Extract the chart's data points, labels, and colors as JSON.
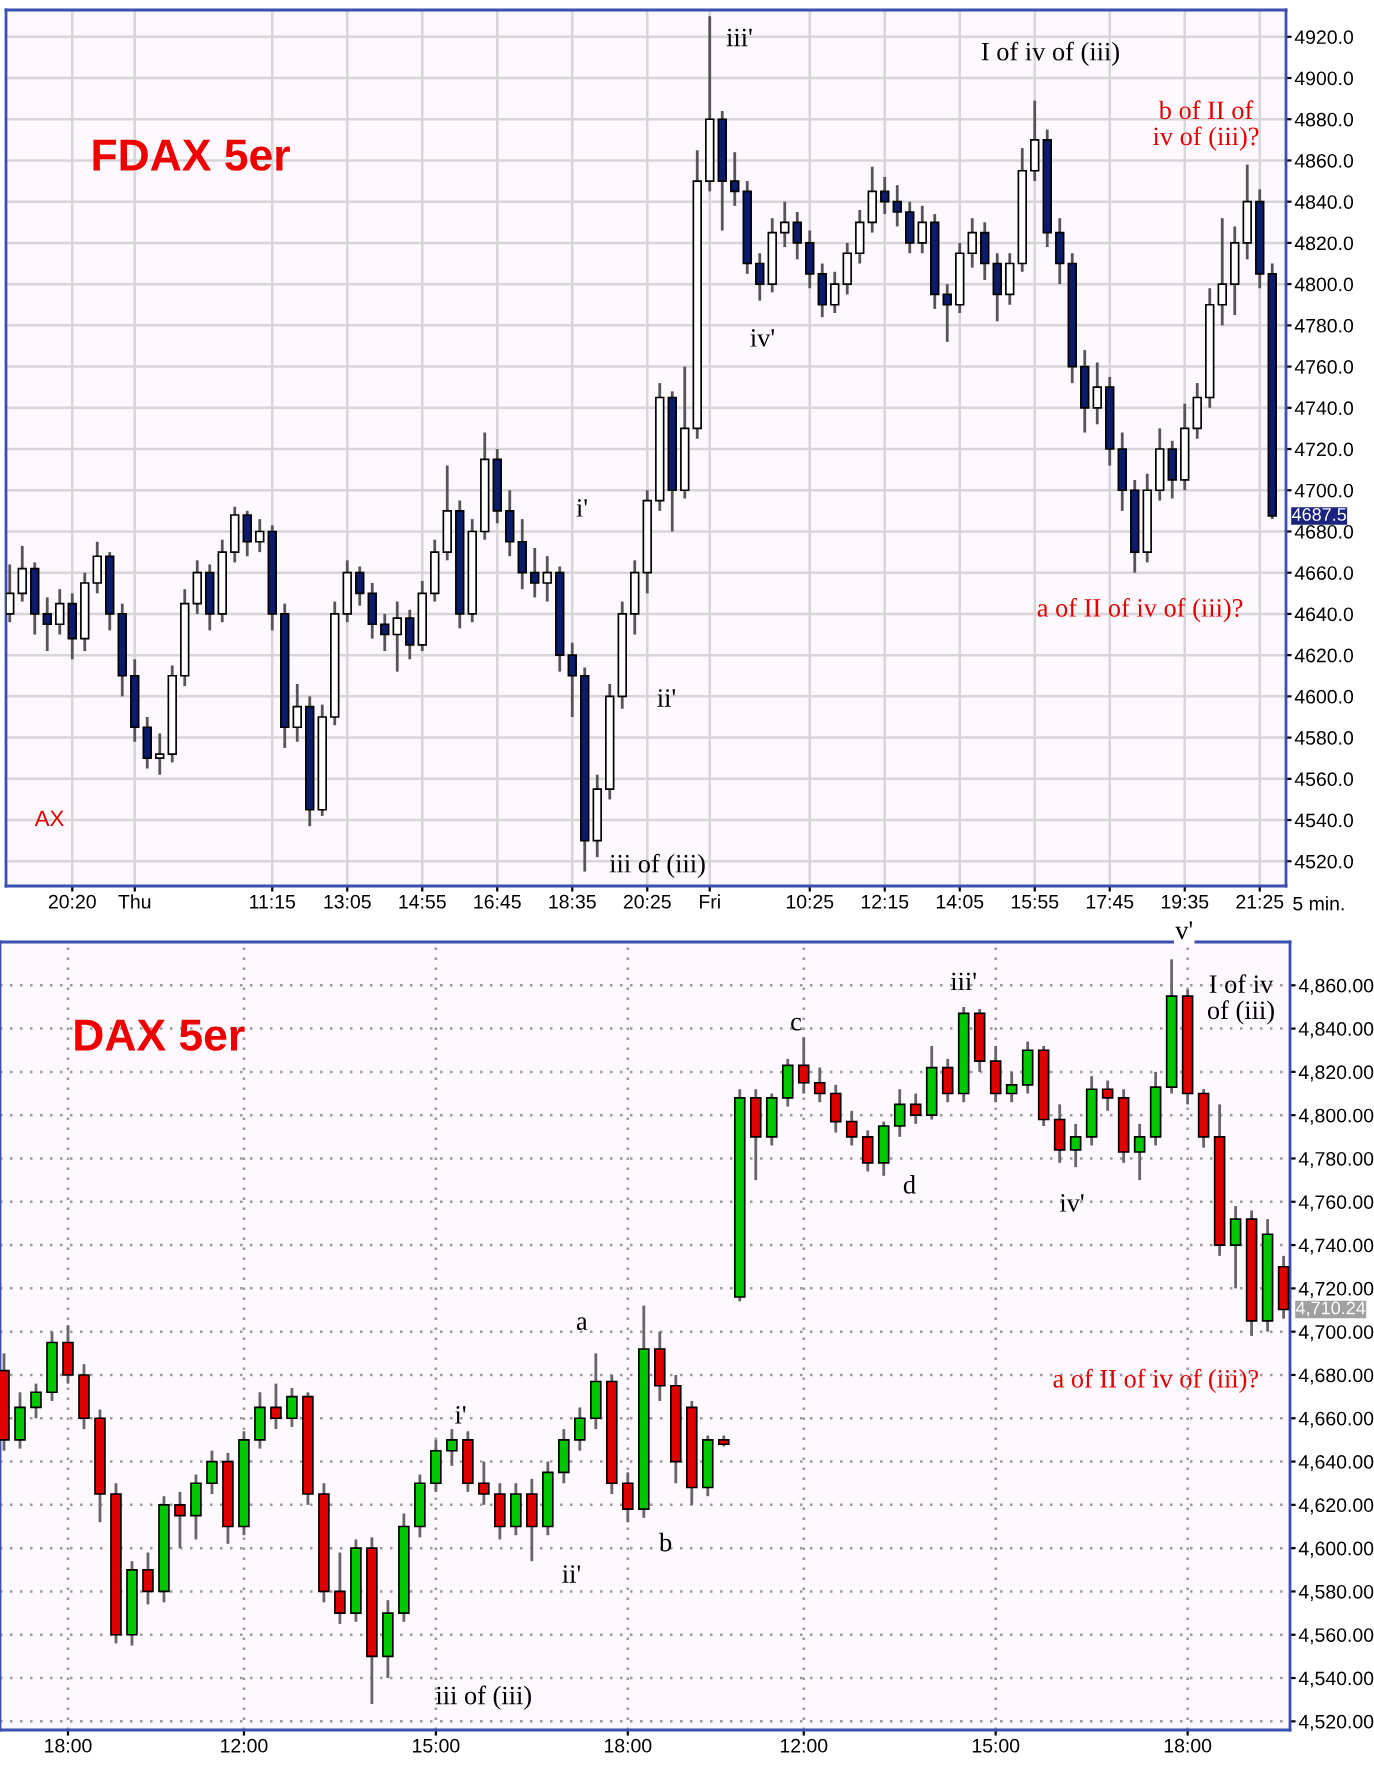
{
  "chart_data": [
    {
      "type": "candlestick",
      "title": "FDAX 5er",
      "grid": true,
      "xlabel": "5 min.",
      "categories": [
        null,
        null,
        null,
        null,
        null,
        "20:20",
        null,
        null,
        null,
        null,
        "Thu",
        null,
        null,
        null,
        null,
        null,
        null,
        null,
        null,
        null,
        null,
        "11:15",
        null,
        null,
        null,
        null,
        null,
        "13:05",
        null,
        null,
        null,
        null,
        null,
        "14:55",
        null,
        null,
        null,
        null,
        null,
        "16:45",
        null,
        null,
        null,
        null,
        null,
        "18:35",
        null,
        null,
        null,
        null,
        null,
        "20:25",
        null,
        null,
        null,
        null,
        "Fri",
        null,
        null,
        null,
        null,
        null,
        null,
        null,
        "10:25",
        null,
        null,
        null,
        null,
        null,
        "12:15",
        null,
        null,
        null,
        null,
        null,
        "14:05",
        null,
        null,
        null,
        null,
        null,
        "15:55",
        null,
        null,
        null,
        null,
        null,
        "17:45",
        null,
        null,
        null,
        null,
        null,
        "19:35",
        null,
        null,
        null,
        null,
        null,
        "21:25",
        null
      ],
      "ohlc": [
        [
          4640,
          4664,
          4636,
          4650
        ],
        [
          4650,
          4673,
          4646,
          4662
        ],
        [
          4662,
          4665,
          4630,
          4640
        ],
        [
          4640,
          4648,
          4622,
          4635
        ],
        [
          4635,
          4652,
          4630,
          4645
        ],
        [
          4645,
          4650,
          4618,
          4628
        ],
        [
          4628,
          4660,
          4622,
          4655
        ],
        [
          4655,
          4675,
          4650,
          4668
        ],
        [
          4668,
          4670,
          4632,
          4640
        ],
        [
          4640,
          4645,
          4600,
          4610
        ],
        [
          4610,
          4618,
          4578,
          4585
        ],
        [
          4585,
          4590,
          4565,
          4570
        ],
        [
          4570,
          4582,
          4562,
          4572
        ],
        [
          4572,
          4615,
          4568,
          4610
        ],
        [
          4610,
          4652,
          4605,
          4645
        ],
        [
          4645,
          4666,
          4640,
          4660
        ],
        [
          4660,
          4664,
          4632,
          4640
        ],
        [
          4640,
          4676,
          4636,
          4670
        ],
        [
          4670,
          4692,
          4665,
          4688
        ],
        [
          4688,
          4690,
          4668,
          4675
        ],
        [
          4675,
          4686,
          4670,
          4680
        ],
        [
          4680,
          4683,
          4632,
          4640
        ],
        [
          4640,
          4645,
          4575,
          4585
        ],
        [
          4585,
          4606,
          4578,
          4595
        ],
        [
          4595,
          4600,
          4537,
          4545
        ],
        [
          4545,
          4596,
          4542,
          4590
        ],
        [
          4590,
          4646,
          4586,
          4640
        ],
        [
          4640,
          4666,
          4636,
          4660
        ],
        [
          4660,
          4663,
          4644,
          4650
        ],
        [
          4650,
          4655,
          4628,
          4635
        ],
        [
          4635,
          4640,
          4622,
          4630
        ],
        [
          4630,
          4646,
          4612,
          4638
        ],
        [
          4638,
          4642,
          4618,
          4625
        ],
        [
          4625,
          4656,
          4622,
          4650
        ],
        [
          4650,
          4676,
          4646,
          4670
        ],
        [
          4670,
          4712,
          4666,
          4690
        ],
        [
          4690,
          4695,
          4633,
          4640
        ],
        [
          4640,
          4686,
          4636,
          4680
        ],
        [
          4680,
          4728,
          4676,
          4715
        ],
        [
          4715,
          4720,
          4684,
          4690
        ],
        [
          4690,
          4700,
          4668,
          4675
        ],
        [
          4675,
          4686,
          4652,
          4660
        ],
        [
          4660,
          4672,
          4648,
          4655
        ],
        [
          4655,
          4668,
          4646,
          4660
        ],
        [
          4660,
          4663,
          4612,
          4620
        ],
        [
          4620,
          4626,
          4590,
          4610
        ],
        [
          4610,
          4614,
          4515,
          4530
        ],
        [
          4530,
          4562,
          4522,
          4555
        ],
        [
          4555,
          4606,
          4550,
          4600
        ],
        [
          4600,
          4646,
          4594,
          4640
        ],
        [
          4640,
          4666,
          4630,
          4660
        ],
        [
          4660,
          4700,
          4650,
          4695
        ],
        [
          4695,
          4752,
          4690,
          4745
        ],
        [
          4745,
          4748,
          4680,
          4700
        ],
        [
          4700,
          4760,
          4696,
          4730
        ],
        [
          4730,
          4865,
          4725,
          4850
        ],
        [
          4850,
          4930,
          4845,
          4880
        ],
        [
          4880,
          4884,
          4826,
          4850
        ],
        [
          4850,
          4864,
          4838,
          4845
        ],
        [
          4845,
          4850,
          4805,
          4810
        ],
        [
          4810,
          4815,
          4792,
          4800
        ],
        [
          4800,
          4832,
          4796,
          4825
        ],
        [
          4825,
          4840,
          4818,
          4830
        ],
        [
          4830,
          4835,
          4812,
          4820
        ],
        [
          4820,
          4826,
          4798,
          4805
        ],
        [
          4805,
          4810,
          4784,
          4790
        ],
        [
          4790,
          4806,
          4786,
          4800
        ],
        [
          4800,
          4820,
          4795,
          4815
        ],
        [
          4815,
          4836,
          4810,
          4830
        ],
        [
          4830,
          4857,
          4825,
          4845
        ],
        [
          4845,
          4852,
          4834,
          4840
        ],
        [
          4840,
          4848,
          4828,
          4835
        ],
        [
          4835,
          4840,
          4815,
          4820
        ],
        [
          4820,
          4838,
          4815,
          4830
        ],
        [
          4830,
          4834,
          4788,
          4795
        ],
        [
          4795,
          4800,
          4772,
          4790
        ],
        [
          4790,
          4820,
          4786,
          4815
        ],
        [
          4815,
          4832,
          4808,
          4825
        ],
        [
          4825,
          4830,
          4802,
          4810
        ],
        [
          4810,
          4815,
          4782,
          4795
        ],
        [
          4795,
          4815,
          4790,
          4810
        ],
        [
          4810,
          4866,
          4806,
          4855
        ],
        [
          4855,
          4889,
          4850,
          4870
        ],
        [
          4870,
          4875,
          4818,
          4825
        ],
        [
          4825,
          4832,
          4800,
          4810
        ],
        [
          4810,
          4815,
          4752,
          4760
        ],
        [
          4760,
          4768,
          4728,
          4740
        ],
        [
          4740,
          4762,
          4732,
          4750
        ],
        [
          4750,
          4755,
          4712,
          4720
        ],
        [
          4720,
          4728,
          4690,
          4700
        ],
        [
          4700,
          4705,
          4660,
          4670
        ],
        [
          4670,
          4708,
          4665,
          4700
        ],
        [
          4700,
          4730,
          4695,
          4720
        ],
        [
          4720,
          4724,
          4696,
          4705
        ],
        [
          4705,
          4742,
          4700,
          4730
        ],
        [
          4730,
          4752,
          4725,
          4745
        ],
        [
          4745,
          4798,
          4740,
          4790
        ],
        [
          4790,
          4832,
          4780,
          4800
        ],
        [
          4800,
          4828,
          4785,
          4820
        ],
        [
          4820,
          4858,
          4812,
          4840
        ],
        [
          4840,
          4846,
          4798,
          4805
        ],
        [
          4805,
          4810,
          4686,
          4687.5
        ]
      ],
      "colors": [
        "#ffffff",
        "#ffffff",
        "#0d1b6b",
        "#0d1b6b",
        "#ffffff",
        "#0d1b6b",
        "#ffffff",
        "#ffffff",
        "#0d1b6b",
        "#0d1b6b",
        "#0d1b6b",
        "#0d1b6b",
        "#ffffff",
        "#ffffff",
        "#ffffff",
        "#ffffff",
        "#0d1b6b",
        "#ffffff",
        "#ffffff",
        "#0d1b6b",
        "#ffffff",
        "#0d1b6b",
        "#0d1b6b",
        "#ffffff",
        "#0d1b6b",
        "#ffffff",
        "#ffffff",
        "#ffffff",
        "#0d1b6b",
        "#0d1b6b",
        "#0d1b6b",
        "#ffffff",
        "#0d1b6b",
        "#ffffff",
        "#ffffff",
        "#ffffff",
        "#0d1b6b",
        "#ffffff",
        "#ffffff",
        "#0d1b6b",
        "#0d1b6b",
        "#0d1b6b",
        "#0d1b6b",
        "#ffffff",
        "#0d1b6b",
        "#0d1b6b",
        "#0d1b6b",
        "#ffffff",
        "#ffffff",
        "#ffffff",
        "#ffffff",
        "#ffffff",
        "#ffffff",
        "#0d1b6b",
        "#ffffff",
        "#ffffff",
        "#ffffff",
        "#0d1b6b",
        "#0d1b6b",
        "#0d1b6b",
        "#0d1b6b",
        "#ffffff",
        "#ffffff",
        "#0d1b6b",
        "#0d1b6b",
        "#0d1b6b",
        "#ffffff",
        "#ffffff",
        "#ffffff",
        "#ffffff",
        "#0d1b6b",
        "#0d1b6b",
        "#0d1b6b",
        "#ffffff",
        "#0d1b6b",
        "#0d1b6b",
        "#ffffff",
        "#ffffff",
        "#0d1b6b",
        "#0d1b6b",
        "#ffffff",
        "#ffffff",
        "#ffffff",
        "#0d1b6b",
        "#0d1b6b",
        "#0d1b6b",
        "#0d1b6b",
        "#ffffff",
        "#0d1b6b",
        "#0d1b6b",
        "#0d1b6b",
        "#ffffff",
        "#ffffff",
        "#0d1b6b",
        "#ffffff",
        "#ffffff",
        "#ffffff",
        "#ffffff",
        "#ffffff",
        "#ffffff",
        "#0d1b6b",
        "#0d1b6b"
      ],
      "ylim": [
        4508,
        4933
      ],
      "yticks": [
        {
          "value": 4520,
          "label": "4520.0"
        },
        {
          "value": 4540,
          "label": "4540.0"
        },
        {
          "value": 4560,
          "label": "4560.0"
        },
        {
          "value": 4580,
          "label": "4580.0"
        },
        {
          "value": 4600,
          "label": "4600.0"
        },
        {
          "value": 4620,
          "label": "4620.0"
        },
        {
          "value": 4640,
          "label": "4640.0"
        },
        {
          "value": 4660,
          "label": "4660.0"
        },
        {
          "value": 4680,
          "label": "4680.0"
        },
        {
          "value": 4700,
          "label": "4700.0"
        },
        {
          "value": 4720,
          "label": "4720.0"
        },
        {
          "value": 4740,
          "label": "4740.0"
        },
        {
          "value": 4760,
          "label": "4760.0"
        },
        {
          "value": 4780,
          "label": "4780.0"
        },
        {
          "value": 4800,
          "label": "4800.0"
        },
        {
          "value": 4820,
          "label": "4820.0"
        },
        {
          "value": 4840,
          "label": "4840.0"
        },
        {
          "value": 4860,
          "label": "4860.0"
        },
        {
          "value": 4880,
          "label": "4880.0"
        },
        {
          "value": 4900,
          "label": "4900.0"
        },
        {
          "value": 4920,
          "label": "4920.0"
        }
      ],
      "annotations": [
        "iii'",
        "I of iv of (iii)",
        "b of II of\niv of (iii)?",
        "iv'",
        "i'",
        "ii'",
        "iii of (iii)",
        "a of II of iv of (iii)?",
        "AX",
        {
          "text": "4687.5",
          "y": 4687.5
        }
      ]
    },
    {
      "type": "candlestick",
      "title": "DAX 5er",
      "grid": true,
      "categories": [
        null,
        null,
        null,
        null,
        "18:00",
        null,
        null,
        null,
        null,
        null,
        null,
        null,
        null,
        null,
        null,
        "12:00",
        null,
        null,
        null,
        null,
        null,
        null,
        null,
        null,
        null,
        null,
        null,
        "15:00",
        null,
        null,
        null,
        null,
        null,
        null,
        null,
        null,
        null,
        null,
        null,
        "18:00",
        null,
        null,
        null,
        null,
        null,
        null,
        null,
        null,
        null,
        null,
        "12:00",
        null,
        null,
        null,
        null,
        null,
        null,
        null,
        null,
        null,
        null,
        null,
        "15:00",
        null,
        null,
        null,
        null,
        null,
        null,
        null,
        null,
        null,
        null,
        null,
        "18:00",
        null,
        null,
        null,
        null,
        null,
        null
      ],
      "ohlc": [
        [
          4682,
          4690,
          4645,
          4650
        ],
        [
          4650,
          4672,
          4646,
          4665
        ],
        [
          4665,
          4676,
          4660,
          4672
        ],
        [
          4672,
          4700,
          4668,
          4695
        ],
        [
          4695,
          4703,
          4676,
          4680
        ],
        [
          4680,
          4685,
          4655,
          4660
        ],
        [
          4660,
          4664,
          4612,
          4625
        ],
        [
          4625,
          4630,
          4556,
          4560
        ],
        [
          4560,
          4594,
          4555,
          4590
        ],
        [
          4590,
          4598,
          4574,
          4580
        ],
        [
          4580,
          4624,
          4575,
          4620
        ],
        [
          4620,
          4626,
          4600,
          4615
        ],
        [
          4615,
          4634,
          4604,
          4630
        ],
        [
          4630,
          4645,
          4625,
          4640
        ],
        [
          4640,
          4644,
          4602,
          4610
        ],
        [
          4610,
          4654,
          4606,
          4650
        ],
        [
          4650,
          4672,
          4646,
          4665
        ],
        [
          4665,
          4676,
          4655,
          4660
        ],
        [
          4660,
          4674,
          4656,
          4670
        ],
        [
          4670,
          4672,
          4620,
          4625
        ],
        [
          4625,
          4630,
          4575,
          4580
        ],
        [
          4580,
          4598,
          4565,
          4570
        ],
        [
          4570,
          4604,
          4566,
          4600
        ],
        [
          4600,
          4605,
          4528,
          4550
        ],
        [
          4550,
          4576,
          4540,
          4570
        ],
        [
          4570,
          4616,
          4566,
          4610
        ],
        [
          4610,
          4634,
          4605,
          4630
        ],
        [
          4630,
          4650,
          4626,
          4645
        ],
        [
          4645,
          4655,
          4638,
          4650
        ],
        [
          4650,
          4654,
          4626,
          4630
        ],
        [
          4630,
          4640,
          4620,
          4625
        ],
        [
          4625,
          4630,
          4604,
          4610
        ],
        [
          4610,
          4630,
          4606,
          4625
        ],
        [
          4625,
          4632,
          4594,
          4610
        ],
        [
          4610,
          4640,
          4606,
          4635
        ],
        [
          4635,
          4655,
          4630,
          4650
        ],
        [
          4650,
          4665,
          4645,
          4660
        ],
        [
          4660,
          4690,
          4655,
          4677
        ],
        [
          4677,
          4680,
          4625,
          4630
        ],
        [
          4630,
          4635,
          4612,
          4618
        ],
        [
          4618,
          4712,
          4614,
          4692
        ],
        [
          4692,
          4700,
          4668,
          4675
        ],
        [
          4675,
          4680,
          4630,
          4640
        ],
        [
          4665,
          4668,
          4620,
          4628
        ],
        [
          4628,
          4652,
          4624,
          4650
        ],
        [
          4650,
          4652,
          4647,
          4648
        ],
        [
          4716,
          4812,
          4714,
          4808
        ],
        [
          4808,
          4812,
          4770,
          4790
        ],
        [
          4790,
          4810,
          4786,
          4808
        ],
        [
          4808,
          4826,
          4804,
          4823
        ],
        [
          4823,
          4836,
          4810,
          4815
        ],
        [
          4815,
          4822,
          4806,
          4810
        ],
        [
          4810,
          4814,
          4792,
          4797
        ],
        [
          4797,
          4802,
          4786,
          4790
        ],
        [
          4790,
          4793,
          4774,
          4778
        ],
        [
          4778,
          4797,
          4772,
          4795
        ],
        [
          4795,
          4812,
          4790,
          4805
        ],
        [
          4805,
          4810,
          4796,
          4800
        ],
        [
          4800,
          4832,
          4798,
          4822
        ],
        [
          4822,
          4826,
          4806,
          4810
        ],
        [
          4810,
          4850,
          4806,
          4847
        ],
        [
          4847,
          4849,
          4820,
          4825
        ],
        [
          4825,
          4832,
          4806,
          4810
        ],
        [
          4810,
          4820,
          4806,
          4814
        ],
        [
          4814,
          4834,
          4810,
          4830
        ],
        [
          4830,
          4832,
          4795,
          4798
        ],
        [
          4798,
          4805,
          4778,
          4784
        ],
        [
          4784,
          4796,
          4776,
          4790
        ],
        [
          4790,
          4818,
          4786,
          4812
        ],
        [
          4812,
          4816,
          4802,
          4808
        ],
        [
          4808,
          4812,
          4778,
          4783
        ],
        [
          4783,
          4796,
          4770,
          4790
        ],
        [
          4790,
          4820,
          4786,
          4813
        ],
        [
          4813,
          4872,
          4810,
          4855
        ],
        [
          4855,
          4858,
          4805,
          4810
        ],
        [
          4810,
          4812,
          4785,
          4790
        ],
        [
          4790,
          4805,
          4735,
          4740
        ],
        [
          4740,
          4758,
          4720,
          4752
        ],
        [
          4752,
          4756,
          4698,
          4705
        ],
        [
          4705,
          4752,
          4700,
          4745
        ],
        [
          4730,
          4735,
          4706,
          4710.24
        ]
      ],
      "colors": [
        "#e00000",
        "#00c800",
        "#00c800",
        "#00c800",
        "#e00000",
        "#e00000",
        "#e00000",
        "#e00000",
        "#00c800",
        "#e00000",
        "#00c800",
        "#e00000",
        "#00c800",
        "#00c800",
        "#e00000",
        "#00c800",
        "#00c800",
        "#e00000",
        "#00c800",
        "#e00000",
        "#e00000",
        "#e00000",
        "#00c800",
        "#e00000",
        "#00c800",
        "#00c800",
        "#00c800",
        "#00c800",
        "#00c800",
        "#e00000",
        "#e00000",
        "#e00000",
        "#00c800",
        "#e00000",
        "#00c800",
        "#00c800",
        "#00c800",
        "#00c800",
        "#e00000",
        "#e00000",
        "#00c800",
        "#e00000",
        "#e00000",
        "#e00000",
        "#00c800",
        "#e00000",
        "#00c800",
        "#e00000",
        "#00c800",
        "#00c800",
        "#e00000",
        "#e00000",
        "#e00000",
        "#e00000",
        "#e00000",
        "#00c800",
        "#00c800",
        "#e00000",
        "#00c800",
        "#e00000",
        "#00c800",
        "#e00000",
        "#e00000",
        "#00c800",
        "#00c800",
        "#e00000",
        "#e00000",
        "#00c800",
        "#00c800",
        "#e00000",
        "#e00000",
        "#00c800",
        "#00c800",
        "#00c800",
        "#e00000",
        "#e00000",
        "#e00000",
        "#00c800",
        "#e00000",
        "#00c800",
        "#e00000"
      ],
      "ylim": [
        4516,
        4880
      ],
      "yticks": [
        {
          "value": 4520,
          "label": "4,520.00"
        },
        {
          "value": 4540,
          "label": "4,540.00"
        },
        {
          "value": 4560,
          "label": "4,560.00"
        },
        {
          "value": 4580,
          "label": "4,580.00"
        },
        {
          "value": 4600,
          "label": "4,600.00"
        },
        {
          "value": 4620,
          "label": "4,620.00"
        },
        {
          "value": 4640,
          "label": "4,640.00"
        },
        {
          "value": 4660,
          "label": "4,660.00"
        },
        {
          "value": 4680,
          "label": "4,680.00"
        },
        {
          "value": 4700,
          "label": "4,700.00"
        },
        {
          "value": 4720,
          "label": "4,720.00"
        },
        {
          "value": 4740,
          "label": "4,740.00"
        },
        {
          "value": 4760,
          "label": "4,760.00"
        },
        {
          "value": 4780,
          "label": "4,780.00"
        },
        {
          "value": 4800,
          "label": "4,800.00"
        },
        {
          "value": 4820,
          "label": "4,820.00"
        },
        {
          "value": 4840,
          "label": "4,840.00"
        },
        {
          "value": 4860,
          "label": "4,860.00"
        }
      ],
      "annotations": [
        "v'",
        "I of iv\nof (iii)",
        "c",
        "iii'",
        "d",
        "iv'",
        "a of II of iv of (iii)?",
        "a",
        "i'",
        "ii'",
        "b",
        "iii of (iii)",
        "4,710.24"
      ]
    }
  ]
}
